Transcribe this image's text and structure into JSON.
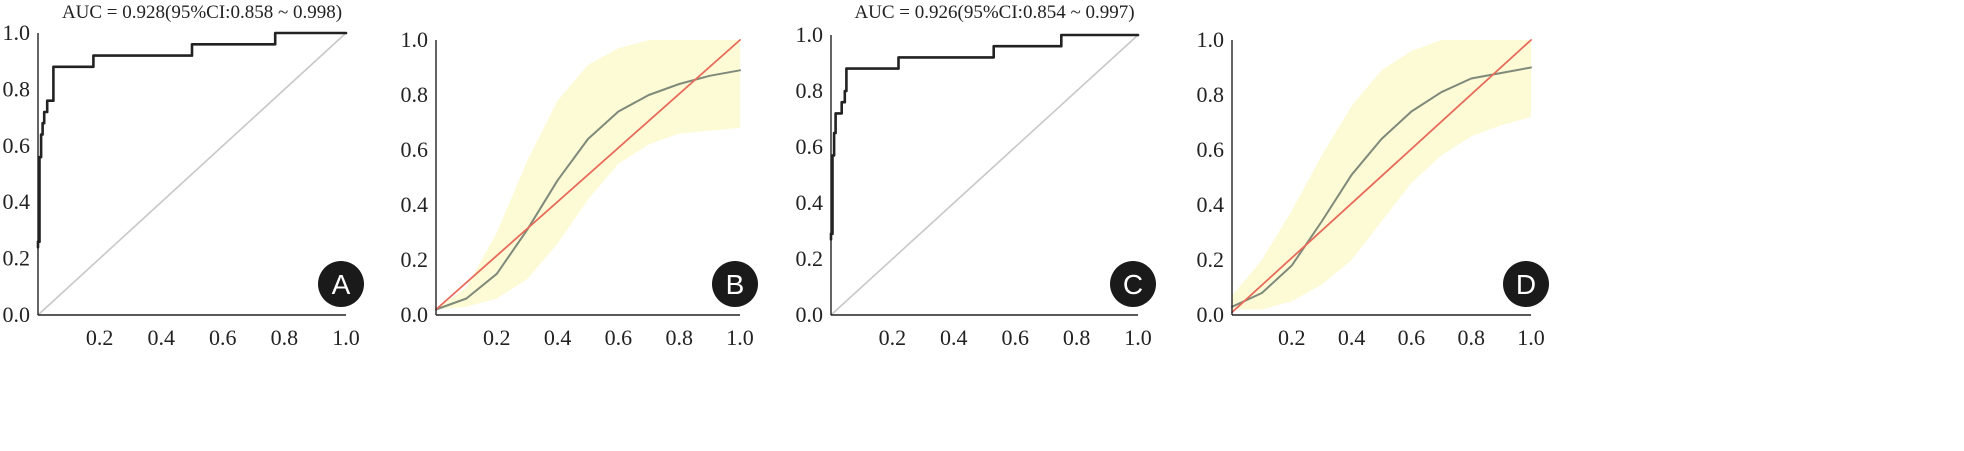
{
  "chart_data": [
    {
      "panel": "A",
      "type": "line",
      "subtype": "roc",
      "title": "AUC = 0.928(95%CI:0.858 ~ 0.998)",
      "xlim": [
        0,
        1
      ],
      "ylim": [
        0,
        1
      ],
      "x_ticks": [
        "0.2",
        "0.4",
        "0.6",
        "0.8",
        "1.0"
      ],
      "y_ticks": [
        "0.0",
        "0.2",
        "0.4",
        "0.6",
        "0.8",
        "1.0"
      ],
      "grid": false,
      "series": [
        {
          "role": "roc",
          "color": "#222222",
          "points": [
            [
              0,
              0.24
            ],
            [
              0,
              0.26
            ],
            [
              0.005,
              0.26
            ],
            [
              0.005,
              0.56
            ],
            [
              0.01,
              0.56
            ],
            [
              0.01,
              0.64
            ],
            [
              0.015,
              0.64
            ],
            [
              0.015,
              0.68
            ],
            [
              0.02,
              0.68
            ],
            [
              0.02,
              0.72
            ],
            [
              0.03,
              0.72
            ],
            [
              0.03,
              0.76
            ],
            [
              0.05,
              0.76
            ],
            [
              0.05,
              0.88
            ],
            [
              0.18,
              0.88
            ],
            [
              0.18,
              0.92
            ],
            [
              0.5,
              0.92
            ],
            [
              0.5,
              0.96
            ],
            [
              0.77,
              0.96
            ],
            [
              0.77,
              1.0
            ],
            [
              1.0,
              1.0
            ]
          ]
        },
        {
          "role": "reference",
          "color": "#c8c8c8",
          "points": [
            [
              0,
              0
            ],
            [
              1,
              1
            ]
          ]
        }
      ]
    },
    {
      "panel": "B",
      "type": "line",
      "subtype": "calibration",
      "xlim": [
        0,
        1
      ],
      "ylim": [
        0,
        1
      ],
      "x_ticks": [
        "0.2",
        "0.4",
        "0.6",
        "0.8",
        "1.0"
      ],
      "y_ticks": [
        "0.0",
        "0.2",
        "0.4",
        "0.6",
        "0.8",
        "1.0"
      ],
      "grid": false,
      "series": [
        {
          "role": "calibration-curve",
          "color": "#7f8a7a",
          "points": [
            [
              0,
              0.02
            ],
            [
              0.1,
              0.06
            ],
            [
              0.2,
              0.15
            ],
            [
              0.3,
              0.31
            ],
            [
              0.4,
              0.49
            ],
            [
              0.5,
              0.64
            ],
            [
              0.6,
              0.74
            ],
            [
              0.7,
              0.8
            ],
            [
              0.8,
              0.84
            ],
            [
              0.9,
              0.87
            ],
            [
              1.0,
              0.89
            ]
          ]
        },
        {
          "role": "ideal",
          "color": "#e86a5a",
          "points": [
            [
              0,
              0.02
            ],
            [
              1,
              1
            ]
          ]
        },
        {
          "role": "confidence-band",
          "color": "#fdfbd6",
          "upper": [
            [
              0,
              0.02
            ],
            [
              0.1,
              0.1
            ],
            [
              0.2,
              0.3
            ],
            [
              0.3,
              0.56
            ],
            [
              0.4,
              0.78
            ],
            [
              0.5,
              0.91
            ],
            [
              0.6,
              0.97
            ],
            [
              0.7,
              1.0
            ],
            [
              1.0,
              1.0
            ]
          ],
          "lower": [
            [
              0,
              0.02
            ],
            [
              0.1,
              0.03
            ],
            [
              0.2,
              0.06
            ],
            [
              0.3,
              0.13
            ],
            [
              0.4,
              0.26
            ],
            [
              0.5,
              0.42
            ],
            [
              0.6,
              0.55
            ],
            [
              0.7,
              0.62
            ],
            [
              0.8,
              0.66
            ],
            [
              0.9,
              0.67
            ],
            [
              1.0,
              0.68
            ]
          ]
        }
      ]
    },
    {
      "panel": "C",
      "type": "line",
      "subtype": "roc",
      "title": "AUC = 0.926(95%CI:0.854 ~ 0.997)",
      "xlim": [
        0,
        1
      ],
      "ylim": [
        0,
        1
      ],
      "x_ticks": [
        "0.2",
        "0.4",
        "0.6",
        "0.8",
        "1.0"
      ],
      "y_ticks": [
        "0.0",
        "0.2",
        "0.4",
        "0.6",
        "0.8",
        "1.0"
      ],
      "grid": false,
      "series": [
        {
          "role": "roc",
          "color": "#222222",
          "points": [
            [
              0,
              0.27
            ],
            [
              0,
              0.29
            ],
            [
              0.005,
              0.29
            ],
            [
              0.005,
              0.57
            ],
            [
              0.01,
              0.57
            ],
            [
              0.01,
              0.65
            ],
            [
              0.015,
              0.65
            ],
            [
              0.015,
              0.72
            ],
            [
              0.035,
              0.72
            ],
            [
              0.035,
              0.76
            ],
            [
              0.045,
              0.76
            ],
            [
              0.045,
              0.8
            ],
            [
              0.05,
              0.8
            ],
            [
              0.05,
              0.88
            ],
            [
              0.22,
              0.88
            ],
            [
              0.22,
              0.92
            ],
            [
              0.53,
              0.92
            ],
            [
              0.53,
              0.96
            ],
            [
              0.75,
              0.96
            ],
            [
              0.75,
              1.0
            ],
            [
              1.0,
              1.0
            ]
          ]
        },
        {
          "role": "reference",
          "color": "#c8c8c8",
          "points": [
            [
              0,
              0
            ],
            [
              1,
              1
            ]
          ]
        }
      ]
    },
    {
      "panel": "D",
      "type": "line",
      "subtype": "calibration",
      "xlim": [
        0,
        1
      ],
      "ylim": [
        0,
        1
      ],
      "x_ticks": [
        "0.2",
        "0.4",
        "0.6",
        "0.8",
        "1.0"
      ],
      "y_ticks": [
        "0.0",
        "0.2",
        "0.4",
        "0.6",
        "0.8",
        "1.0"
      ],
      "grid": false,
      "series": [
        {
          "role": "calibration-curve",
          "color": "#7f8a7a",
          "points": [
            [
              0,
              0.03
            ],
            [
              0.1,
              0.08
            ],
            [
              0.2,
              0.18
            ],
            [
              0.3,
              0.34
            ],
            [
              0.4,
              0.51
            ],
            [
              0.5,
              0.64
            ],
            [
              0.6,
              0.74
            ],
            [
              0.7,
              0.81
            ],
            [
              0.8,
              0.86
            ],
            [
              0.9,
              0.88
            ],
            [
              1.0,
              0.9
            ]
          ]
        },
        {
          "role": "ideal",
          "color": "#e86a5a",
          "points": [
            [
              0,
              0.01
            ],
            [
              1,
              1
            ]
          ]
        },
        {
          "role": "confidence-band",
          "color": "#fdfbd6",
          "upper": [
            [
              0,
              0.07
            ],
            [
              0.1,
              0.2
            ],
            [
              0.2,
              0.38
            ],
            [
              0.3,
              0.58
            ],
            [
              0.4,
              0.76
            ],
            [
              0.5,
              0.89
            ],
            [
              0.6,
              0.96
            ],
            [
              0.7,
              1.0
            ],
            [
              1.0,
              1.0
            ]
          ],
          "lower": [
            [
              0,
              0.02
            ],
            [
              0.1,
              0.02
            ],
            [
              0.2,
              0.05
            ],
            [
              0.3,
              0.11
            ],
            [
              0.4,
              0.2
            ],
            [
              0.5,
              0.34
            ],
            [
              0.6,
              0.48
            ],
            [
              0.7,
              0.58
            ],
            [
              0.8,
              0.65
            ],
            [
              0.9,
              0.69
            ],
            [
              1.0,
              0.72
            ]
          ]
        }
      ]
    }
  ]
}
